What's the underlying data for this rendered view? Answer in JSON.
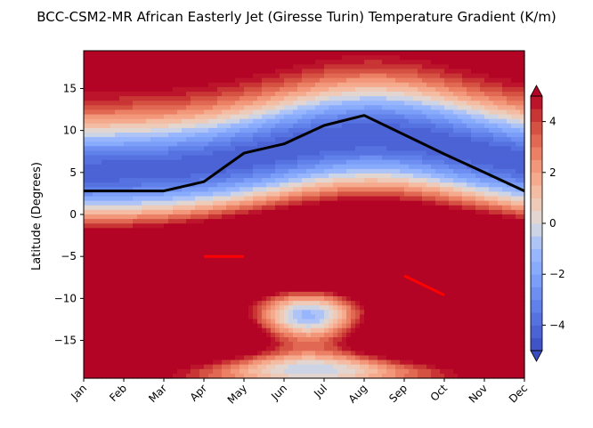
{
  "chart_data": {
    "type": "contour",
    "title": "BCC-CSM2-MR African Easterly Jet (Giresse Turin) Temperature Gradient (K/m)",
    "xlabel": "",
    "ylabel": "Latitude (Degrees)",
    "x_categories": [
      "Jan",
      "Feb",
      "Mar",
      "Apr",
      "May",
      "Jun",
      "Jul",
      "Aug",
      "Sep",
      "Oct",
      "Nov",
      "Dec"
    ],
    "ylim": [
      -19.5,
      19.5
    ],
    "y_ticks": [
      -15,
      -10,
      -5,
      0,
      5,
      10,
      15
    ],
    "colorbar": {
      "ticks": [
        -4,
        -2,
        0,
        2,
        4
      ],
      "levels": [
        -5,
        -4.5,
        -4,
        -3.5,
        -3,
        -2.5,
        -2,
        -1.5,
        -1,
        -0.5,
        0,
        0.5,
        1,
        1.5,
        2,
        2.5,
        3,
        3.5,
        4,
        4.5,
        5
      ],
      "extend": "both",
      "colormap": "coolwarm",
      "low_color": "#3b4cc0",
      "high_color": "#b40426"
    },
    "series": [
      {
        "name": "black line",
        "color": "#000000",
        "x": [
          0,
          1,
          2,
          3,
          4,
          5,
          6,
          7,
          8,
          9,
          10,
          11
        ],
        "values": [
          2.8,
          2.8,
          2.8,
          3.9,
          7.3,
          8.4,
          10.6,
          11.8,
          9.5,
          7.2,
          5.0,
          2.8
        ]
      },
      {
        "name": "red segment 1",
        "color": "#ff0000",
        "x": [
          3,
          4
        ],
        "values": [
          -5.0,
          -5.0
        ]
      },
      {
        "name": "red segment 2",
        "color": "#ff0000",
        "x": [
          8,
          9
        ],
        "values": [
          -7.3,
          -9.6
        ]
      }
    ]
  }
}
